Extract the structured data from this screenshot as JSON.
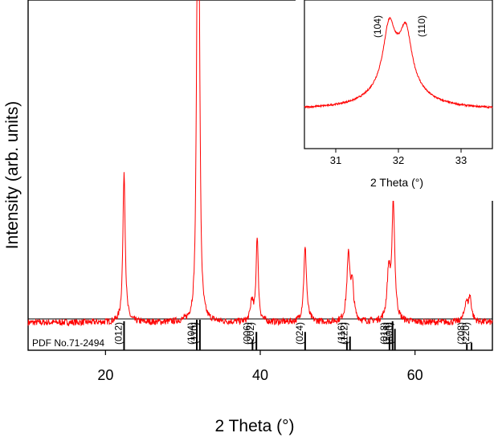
{
  "chart_data": [
    {
      "type": "line",
      "title": "",
      "xlabel": "2 Theta (°)",
      "ylabel": "Intensity (arb. units)",
      "xlim": [
        10,
        70
      ],
      "xticks": [
        20,
        40,
        60
      ],
      "ylim": [
        0,
        1
      ],
      "y_ticks_shown": false,
      "line_color": "#ff0000",
      "baseline": 0.045,
      "peaks": [
        {
          "x": 22.4,
          "height": 0.51,
          "width": 0.18
        },
        {
          "x": 31.85,
          "height": 0.92,
          "width": 0.16
        },
        {
          "x": 32.1,
          "height": 0.92,
          "width": 0.16
        },
        {
          "x": 38.9,
          "height": 0.07,
          "width": 0.2
        },
        {
          "x": 39.6,
          "height": 0.29,
          "width": 0.17
        },
        {
          "x": 45.8,
          "height": 0.25,
          "width": 0.22
        },
        {
          "x": 51.4,
          "height": 0.22,
          "width": 0.25
        },
        {
          "x": 51.9,
          "height": 0.11,
          "width": 0.22
        },
        {
          "x": 56.6,
          "height": 0.16,
          "width": 0.25
        },
        {
          "x": 57.2,
          "height": 0.39,
          "width": 0.22
        },
        {
          "x": 66.6,
          "height": 0.06,
          "width": 0.25
        },
        {
          "x": 67.1,
          "height": 0.08,
          "width": 0.25
        }
      ],
      "reference": {
        "label": "PDF No.71-2494",
        "color": "#000000",
        "lines": [
          {
            "x": 22.4,
            "rel": 0.95,
            "hkl": "(012)"
          },
          {
            "x": 31.8,
            "rel": 1.0,
            "hkl": "(104)"
          },
          {
            "x": 32.2,
            "rel": 1.0,
            "hkl": "(110)"
          },
          {
            "x": 39.0,
            "rel": 0.35,
            "hkl": "(006)"
          },
          {
            "x": 39.5,
            "rel": 0.6,
            "hkl": "(202)"
          },
          {
            "x": 45.8,
            "rel": 0.6,
            "hkl": "(024)"
          },
          {
            "x": 51.2,
            "rel": 0.3,
            "hkl": "(116)"
          },
          {
            "x": 51.6,
            "rel": 0.45,
            "hkl": "(122)"
          },
          {
            "x": 56.7,
            "rel": 0.45,
            "hkl": "(018)"
          },
          {
            "x": 57.1,
            "rel": 0.95,
            "hkl": "(214)"
          },
          {
            "x": 57.4,
            "rel": 0.7,
            "hkl": "(300)"
          },
          {
            "x": 66.7,
            "rel": 0.2,
            "hkl": "(208)"
          },
          {
            "x": 67.3,
            "rel": 0.25,
            "hkl": "(220)"
          }
        ]
      }
    },
    {
      "type": "line",
      "inset": true,
      "title": "",
      "xlabel": "2 Theta (°)",
      "ylabel": "",
      "xlim": [
        30.5,
        33.5
      ],
      "xticks": [
        31,
        32,
        33
      ],
      "ylim": [
        0,
        1
      ],
      "line_color": "#ff0000",
      "baseline": 0.27,
      "peaks": [
        {
          "x": 31.85,
          "height": 0.36,
          "width": 0.11
        },
        {
          "x": 32.12,
          "height": 0.33,
          "width": 0.11
        },
        {
          "x": 31.98,
          "height": 0.25,
          "width": 0.35
        }
      ],
      "annotations": [
        {
          "x": 31.72,
          "text": "(104)"
        },
        {
          "x": 32.42,
          "text": "(110)"
        }
      ]
    }
  ]
}
